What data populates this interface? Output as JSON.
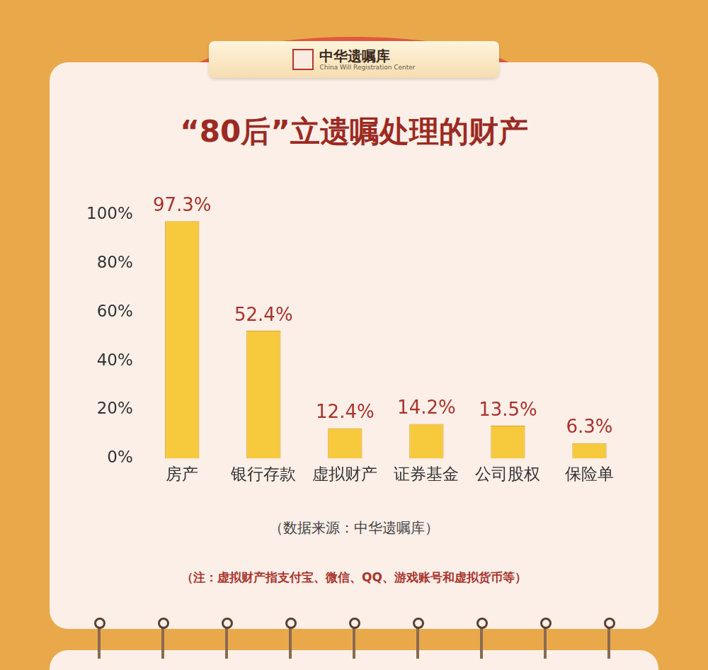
{
  "header": {
    "name": "中华遗嘱库",
    "english": "China Will Registration Center"
  },
  "chart_data": {
    "type": "bar",
    "title": "“80后”立遗嘱处理的财产",
    "categories": [
      "房产",
      "银行存款",
      "虚拟财产",
      "证券基金",
      "公司股权",
      "保险单"
    ],
    "values": [
      97.3,
      52.4,
      12.4,
      14.2,
      13.5,
      6.3
    ],
    "value_labels": [
      "97.3%",
      "52.4%",
      "12.4%",
      "14.2%",
      "13.5%",
      "6.3%"
    ],
    "data_labels": true,
    "color": "#F7C93C",
    "ylim": [
      0,
      100
    ],
    "yticks": [
      {
        "value": 0,
        "label": "0%"
      },
      {
        "value": 20,
        "label": "20%"
      },
      {
        "value": 40,
        "label": "40%"
      },
      {
        "value": 60,
        "label": "60%"
      },
      {
        "value": 80,
        "label": "80%"
      },
      {
        "value": 100,
        "label": "100%"
      }
    ],
    "grid": false,
    "source": "（数据来源：中华遗嘱库）",
    "note": "（注：虚拟财产指支付宝、微信、QQ、游戏账号和虚拟货币等）"
  }
}
